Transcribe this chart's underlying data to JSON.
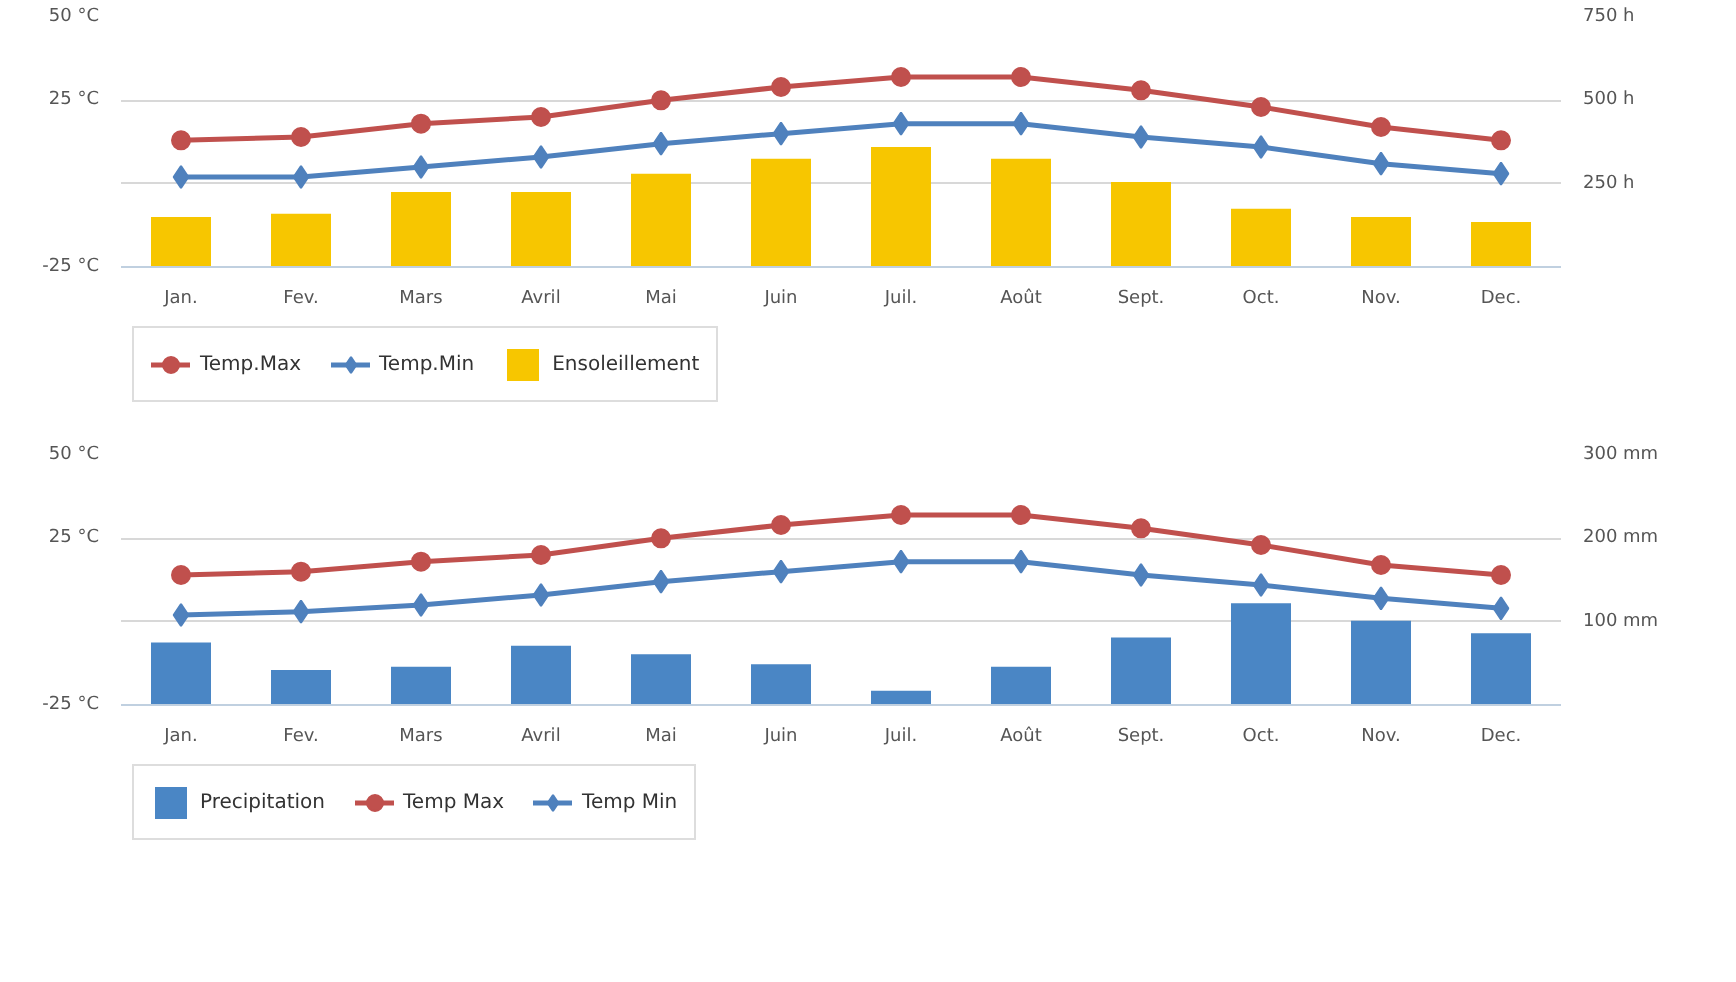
{
  "chart_data": [
    {
      "type": "line",
      "categories": [
        "Jan.",
        "Fev.",
        "Mars",
        "Avril",
        "Mai",
        "Juin",
        "Juil.",
        "Août",
        "Sept.",
        "Oct.",
        "Nov.",
        "Dec."
      ],
      "ylim": [
        -25,
        50
      ],
      "yticks": [
        {
          "value": -25,
          "label": "-25 °C"
        },
        {
          "value": 0,
          "label": null
        },
        {
          "value": 25,
          "label": "25 °C"
        },
        {
          "value": 50,
          "label": "50 °C"
        }
      ],
      "y2lim": [
        0,
        750
      ],
      "y2ticks": [
        {
          "value": 250,
          "label": "250 h"
        },
        {
          "value": 500,
          "label": "500 h"
        },
        {
          "value": 750,
          "label": "750 h"
        }
      ],
      "grid": "y",
      "legend": "bottom",
      "series": [
        {
          "name": "Temp.Max",
          "marker": "circle",
          "color": "#c0504d",
          "values": [
            13,
            14,
            18,
            20,
            25,
            29,
            32,
            32,
            28,
            23,
            17,
            13
          ]
        },
        {
          "name": "Temp.Min",
          "marker": "diamond",
          "color": "#4f81bd",
          "values": [
            2,
            2,
            5,
            8,
            12,
            15,
            18,
            18,
            14,
            11,
            6,
            3
          ]
        },
        {
          "name": "Ensoleillement",
          "type": "bar",
          "axis": "y2",
          "color": "#f7c600",
          "values": [
            150,
            160,
            225,
            225,
            280,
            325,
            360,
            325,
            255,
            175,
            150,
            135
          ]
        }
      ]
    },
    {
      "type": "line",
      "categories": [
        "Jan.",
        "Fev.",
        "Mars",
        "Avril",
        "Mai",
        "Juin",
        "Juil.",
        "Août",
        "Sept.",
        "Oct.",
        "Nov.",
        "Dec."
      ],
      "ylim": [
        -25,
        50
      ],
      "yticks": [
        {
          "value": -25,
          "label": "-25 °C"
        },
        {
          "value": 0,
          "label": null
        },
        {
          "value": 25,
          "label": "25 °C"
        },
        {
          "value": 50,
          "label": "50 °C"
        }
      ],
      "y2lim": [
        0,
        300
      ],
      "y2ticks": [
        {
          "value": 100,
          "label": "100 mm"
        },
        {
          "value": 200,
          "label": "200 mm"
        },
        {
          "value": 300,
          "label": "300 mm"
        }
      ],
      "grid": "y",
      "legend": "bottom",
      "series": [
        {
          "name": "Precipitation",
          "type": "bar",
          "axis": "y2",
          "color": "#4a86c5",
          "values": [
            75,
            42,
            46,
            71,
            61,
            49,
            17,
            46,
            81,
            122,
            101,
            86
          ]
        },
        {
          "name": "Temp Max",
          "marker": "circle",
          "color": "#c0504d",
          "values": [
            14,
            15,
            18,
            20,
            25,
            29,
            32,
            32,
            28,
            23,
            17,
            14
          ]
        },
        {
          "name": "Temp Min",
          "marker": "diamond",
          "color": "#4f81bd",
          "values": [
            2,
            3,
            5,
            8,
            12,
            15,
            18,
            18,
            14,
            11,
            7,
            4
          ]
        }
      ]
    }
  ]
}
